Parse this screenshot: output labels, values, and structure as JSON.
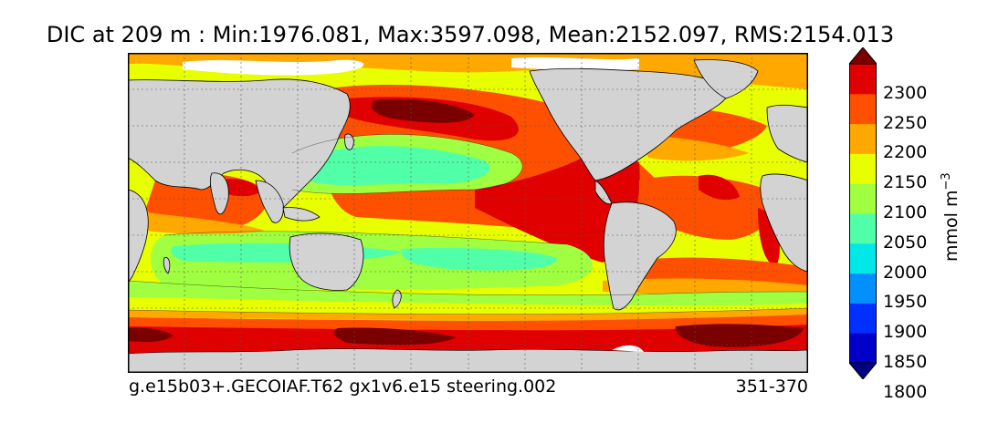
{
  "title": "DIC at 209 m : Min:1976.081, Max:3597.098, Mean:2152.097, RMS:2154.013",
  "footer": {
    "run_id": "g.e15b03+.GECOIAF.T62 gx1v6.e15 steering.002",
    "years": "351-370"
  },
  "colorbar": {
    "units": "mmol m⁻³",
    "units_base": "mmol m",
    "units_exp": "−3",
    "tick_labels": [
      "2300",
      "2250",
      "2200",
      "2150",
      "2100",
      "2050",
      "2000",
      "1950",
      "1900",
      "1850",
      "1800"
    ],
    "colors_low_to_high": [
      "#000080",
      "#0000c8",
      "#0030ff",
      "#0090ff",
      "#00e8e8",
      "#50ffa8",
      "#a0ff40",
      "#e8ff00",
      "#ffa800",
      "#ff5000",
      "#e00000",
      "#7a0000"
    ]
  },
  "chart_data": {
    "type": "map",
    "variable": "DIC",
    "depth": "209 m",
    "stats": {
      "min": 1976.081,
      "max": 3597.098,
      "mean": 2152.097,
      "rms": 2154.013
    },
    "levels": [
      1800,
      1850,
      1900,
      1950,
      2000,
      2050,
      2100,
      2150,
      2200,
      2250,
      2300
    ],
    "extend": "both",
    "units": "mmol m-3",
    "land_color": "#d3d3d3",
    "grid": true
  }
}
